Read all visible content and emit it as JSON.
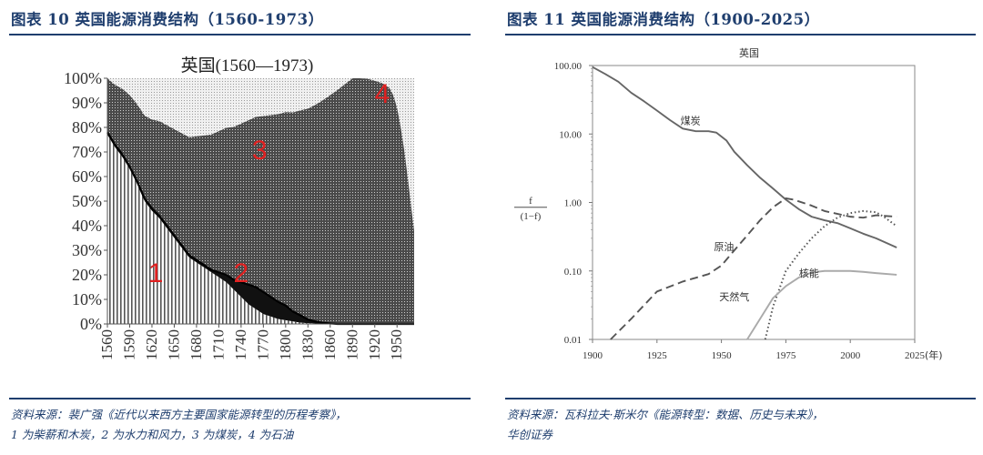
{
  "left": {
    "figure_title": "图表 10    英国能源消费结构（1560-1973）",
    "source_lines": [
      "资料来源：裴广强《近代以来西方主要国家能源转型的历程考察》，",
      "1 为柴薪和木炭，2 为水力和风力，3 为煤炭，4 为石油"
    ]
  },
  "right": {
    "figure_title": "图表 11    英国能源消费结构（1900-2025）",
    "source_lines": [
      "资料来源：瓦科拉夫·斯米尔《能源转型：数据、历史与未来》，",
      "华创证券"
    ]
  },
  "chart_data": [
    {
      "type": "area",
      "title": "英国(1560—1973)",
      "x_ticks": [
        1560,
        1590,
        1620,
        1650,
        1680,
        1710,
        1740,
        1770,
        1800,
        1830,
        1860,
        1890,
        1920,
        1950
      ],
      "y_ticks": [
        "0%",
        "10%",
        "20%",
        "30%",
        "40%",
        "50%",
        "60%",
        "70%",
        "80%",
        "90%",
        "100%"
      ],
      "ylim": [
        0,
        100
      ],
      "xlim": [
        1560,
        1973
      ],
      "stacked": true,
      "series": [
        {
          "name": "1",
          "fill": "vertical-stripes",
          "x": [
            1560,
            1570,
            1580,
            1590,
            1600,
            1610,
            1620,
            1630,
            1640,
            1650,
            1660,
            1670,
            1680,
            1690,
            1700,
            1710,
            1720,
            1730,
            1740,
            1750,
            1760,
            1770,
            1780,
            1790,
            1800,
            1810,
            1820,
            1830,
            1840,
            1850,
            1860,
            1870,
            1880,
            1973
          ],
          "values": [
            77,
            72,
            68,
            63,
            57,
            50,
            46,
            43,
            39,
            35,
            31,
            27,
            25,
            23,
            21,
            19,
            17,
            14,
            11,
            8,
            6,
            4,
            3,
            2,
            1.5,
            1,
            0.5,
            0.3,
            0.2,
            0.1,
            0,
            0,
            0,
            0
          ]
        },
        {
          "name": "2",
          "fill": "dense",
          "x": [
            1560,
            1570,
            1580,
            1590,
            1600,
            1610,
            1620,
            1630,
            1640,
            1650,
            1660,
            1670,
            1680,
            1690,
            1700,
            1710,
            1720,
            1730,
            1740,
            1750,
            1760,
            1770,
            1780,
            1790,
            1800,
            1810,
            1820,
            1830,
            1840,
            1850,
            1860,
            1870,
            1880,
            1973
          ],
          "values": [
            1,
            1,
            1,
            1,
            1,
            1,
            1,
            1,
            1,
            1,
            1,
            1,
            1,
            1,
            1,
            2,
            3,
            4,
            6,
            8,
            9,
            9,
            8,
            7,
            6,
            4,
            3,
            1.5,
            0.8,
            0.4,
            0.2,
            0,
            0,
            0
          ]
        },
        {
          "name": "3",
          "fill": "dark-dots",
          "x": [
            1560,
            1890,
            1900,
            1910,
            1920,
            1930,
            1940,
            1945,
            1950,
            1955,
            1960,
            1965,
            1970,
            1973
          ],
          "values": [
            22,
            100,
            100,
            99.8,
            99,
            98,
            96,
            93,
            88,
            80,
            70,
            58,
            45,
            38
          ]
        },
        {
          "name": "4",
          "fill": "light-dots"
        }
      ],
      "labels": [
        {
          "text": "1",
          "x": 1625,
          "y": 17
        },
        {
          "text": "2",
          "x": 1740,
          "y": 17
        },
        {
          "text": "3",
          "x": 1765,
          "y": 67
        },
        {
          "text": "4",
          "x": 1930,
          "y": 90
        }
      ],
      "label_color": "#e02020"
    },
    {
      "type": "line",
      "title": "英国",
      "xlabel_suffix": "(年)",
      "ylabel": "f / (1−f)",
      "ylabel_top": "f",
      "ylabel_bottom": "(1−f)",
      "yscale": "log",
      "ylim": [
        0.01,
        100
      ],
      "xlim": [
        1900,
        2025
      ],
      "x_ticks": [
        "1900",
        "1925",
        "1950",
        "1975",
        "2000",
        "2025"
      ],
      "y_ticks": [
        "100.00",
        "10.00",
        "1.00",
        "0.10",
        "0.01"
      ],
      "series": [
        {
          "name": "煤炭",
          "style": "solid",
          "color": "#666666",
          "x": [
            1900,
            1905,
            1910,
            1915,
            1920,
            1925,
            1930,
            1935,
            1940,
            1945,
            1948,
            1952,
            1955,
            1960,
            1965,
            1970,
            1975,
            1980,
            1985,
            1990,
            1995,
            2000,
            2005,
            2010,
            2018
          ],
          "y": [
            95,
            75,
            58,
            40,
            30,
            22,
            16,
            12,
            11,
            11,
            10.5,
            8,
            5.5,
            3.5,
            2.3,
            1.6,
            1.1,
            0.8,
            0.62,
            0.55,
            0.5,
            0.42,
            0.35,
            0.3,
            0.22
          ]
        },
        {
          "name": "原油",
          "style": "dashed",
          "color": "#555555",
          "x": [
            1907,
            1915,
            1925,
            1935,
            1945,
            1950,
            1955,
            1960,
            1965,
            1970,
            1975,
            1978,
            1985,
            1990,
            2000,
            2005,
            2010,
            2018
          ],
          "y": [
            0.01,
            0.02,
            0.05,
            0.07,
            0.09,
            0.12,
            0.2,
            0.33,
            0.55,
            0.85,
            1.15,
            1.1,
            0.9,
            0.75,
            0.62,
            0.6,
            0.65,
            0.62
          ]
        },
        {
          "name": "天然气",
          "style": "dotted",
          "color": "#555555",
          "x": [
            1967,
            1970,
            1975,
            1980,
            1985,
            1990,
            1995,
            2000,
            2005,
            2010,
            2013,
            2018
          ],
          "y": [
            0.01,
            0.03,
            0.1,
            0.18,
            0.3,
            0.45,
            0.6,
            0.7,
            0.75,
            0.72,
            0.62,
            0.45
          ]
        },
        {
          "name": "核能",
          "style": "solid",
          "color": "#aaaaaa",
          "x": [
            1960,
            1965,
            1970,
            1975,
            1980,
            1985,
            1990,
            1995,
            2000,
            2005,
            2010,
            2018
          ],
          "y": [
            0.01,
            0.02,
            0.04,
            0.06,
            0.08,
            0.095,
            0.1,
            0.1,
            0.1,
            0.097,
            0.093,
            0.088
          ]
        }
      ],
      "series_labels": [
        {
          "text": "煤炭",
          "x": 1938,
          "y": 14
        },
        {
          "text": "原油",
          "x": 1951,
          "y": 0.2
        },
        {
          "text": "天然气",
          "x": 1955,
          "y": 0.037
        },
        {
          "text": "核能",
          "x": 1984,
          "y": 0.083
        }
      ]
    }
  ]
}
